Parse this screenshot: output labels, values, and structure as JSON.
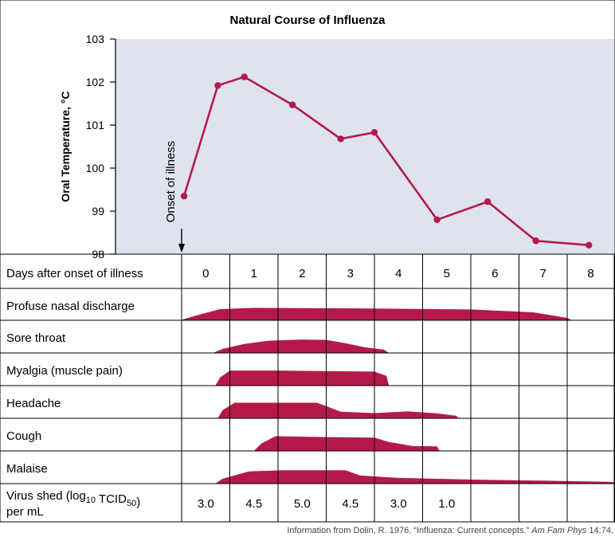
{
  "chart_data": {
    "type": "line",
    "title": "Natural Course of Influenza",
    "ylabel": "Oral Temperature, °C",
    "ylim": [
      98,
      103
    ],
    "y_ticks": [
      "98",
      "99",
      "100",
      "101",
      "102",
      "103"
    ],
    "x": [
      -0.45,
      0.25,
      0.8,
      1.8,
      2.8,
      3.5,
      4.8,
      5.85,
      6.85,
      7.95
    ],
    "temperature": [
      99.35,
      101.92,
      102.12,
      101.47,
      100.68,
      100.83,
      98.8,
      99.22,
      98.31,
      98.21
    ],
    "onset_label": "Onset of illness",
    "onset_day": -0.5,
    "table": {
      "header_label": "Days after onset of illness",
      "days": [
        "0",
        "1",
        "2",
        "3",
        "4",
        "5",
        "6",
        "7",
        "8"
      ],
      "symptoms": [
        {
          "name": "Profuse nasal discharge",
          "profile": [
            [
              -0.5,
              0.03
            ],
            [
              -0.2,
              0.3
            ],
            [
              0.3,
              0.7
            ],
            [
              1.0,
              0.78
            ],
            [
              3.0,
              0.75
            ],
            [
              5.5,
              0.68
            ],
            [
              6.8,
              0.5
            ],
            [
              7.5,
              0.15
            ],
            [
              7.6,
              0.0
            ]
          ]
        },
        {
          "name": "Sore throat",
          "profile": [
            [
              0.15,
              0.0
            ],
            [
              0.35,
              0.25
            ],
            [
              0.8,
              0.55
            ],
            [
              1.3,
              0.75
            ],
            [
              1.95,
              0.82
            ],
            [
              2.5,
              0.8
            ],
            [
              2.9,
              0.6
            ],
            [
              3.3,
              0.35
            ],
            [
              3.7,
              0.2
            ],
            [
              3.8,
              0.0
            ]
          ]
        },
        {
          "name": "Myalgia (muscle pain)",
          "profile": [
            [
              0.2,
              0.0
            ],
            [
              0.3,
              0.5
            ],
            [
              0.5,
              0.92
            ],
            [
              1.5,
              0.92
            ],
            [
              3.5,
              0.86
            ],
            [
              3.75,
              0.6
            ],
            [
              3.8,
              0.0
            ]
          ]
        },
        {
          "name": "Headache",
          "profile": [
            [
              0.25,
              0.0
            ],
            [
              0.35,
              0.5
            ],
            [
              0.6,
              0.95
            ],
            [
              2.3,
              0.95
            ],
            [
              2.5,
              0.75
            ],
            [
              2.8,
              0.4
            ],
            [
              3.5,
              0.32
            ],
            [
              4.2,
              0.42
            ],
            [
              4.8,
              0.3
            ],
            [
              5.2,
              0.15
            ],
            [
              5.25,
              0.0
            ]
          ]
        },
        {
          "name": "Cough",
          "profile": [
            [
              1.0,
              0.0
            ],
            [
              1.15,
              0.45
            ],
            [
              1.45,
              0.9
            ],
            [
              2.5,
              0.85
            ],
            [
              3.5,
              0.82
            ],
            [
              3.8,
              0.55
            ],
            [
              4.3,
              0.3
            ],
            [
              4.8,
              0.28
            ],
            [
              4.85,
              0.0
            ]
          ]
        },
        {
          "name": "Malaise",
          "profile": [
            [
              0.2,
              0.0
            ],
            [
              0.35,
              0.3
            ],
            [
              0.9,
              0.75
            ],
            [
              1.6,
              0.82
            ],
            [
              2.9,
              0.82
            ],
            [
              3.2,
              0.5
            ],
            [
              4.0,
              0.35
            ],
            [
              5.5,
              0.25
            ],
            [
              7.0,
              0.18
            ],
            [
              8.5,
              0.1
            ],
            [
              8.5,
              0.0
            ]
          ]
        }
      ],
      "virus_label": "Virus shed (log",
      "virus_label_sub1": "10",
      "virus_label_mid": " TCID",
      "virus_label_sub2": "50",
      "virus_label_end": ")",
      "virus_label_line2": "per mL",
      "virus_values": [
        "3.0",
        "4.5",
        "5.0",
        "4.5",
        "3.0",
        "1.0",
        "",
        "",
        ""
      ]
    },
    "grid": false,
    "colors": {
      "series": "#b5194a",
      "fill": "#b5194a",
      "plot_bg": "#dfe3ef"
    }
  },
  "credit": {
    "prefix": "Information from Dolin, R. 1976. “Influenza: Current concepts.” ",
    "journal": "Am Fam Phys",
    "suffix": " 14:74."
  }
}
